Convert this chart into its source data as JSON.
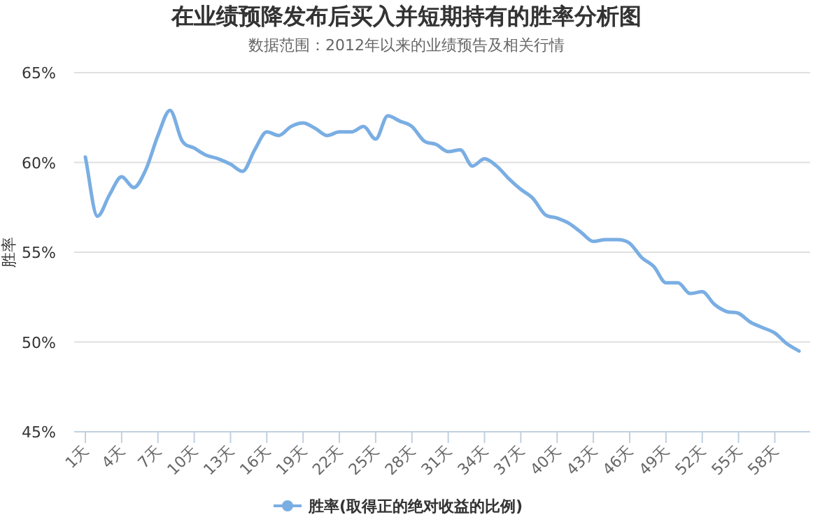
{
  "chart_data": {
    "type": "line",
    "title": "在业绩预降发布后买入并短期持有的胜率分析图",
    "subtitle": "数据范围：2012年以来的业绩预告及相关行情",
    "ylabel": "胜率",
    "categories": [
      "1天",
      null,
      null,
      "4天",
      null,
      null,
      "7天",
      null,
      null,
      "10天",
      null,
      null,
      "13天",
      null,
      null,
      "16天",
      null,
      null,
      "19天",
      null,
      null,
      "22天",
      null,
      null,
      "25天",
      null,
      null,
      "28天",
      null,
      null,
      "31天",
      null,
      null,
      "34天",
      null,
      null,
      "37天",
      null,
      null,
      "40天",
      null,
      null,
      "43天",
      null,
      null,
      "46天",
      null,
      null,
      "49天",
      null,
      null,
      "52天",
      null,
      null,
      "55天",
      null,
      null,
      "58天",
      null,
      null
    ],
    "series": [
      {
        "name": "胜率(取得正的绝对收益的比例)",
        "color": "#7aaee3",
        "values": [
          60.3,
          57.0,
          58.2,
          59.2,
          58.6,
          59.6,
          61.5,
          62.9,
          61.2,
          60.8,
          60.4,
          60.2,
          59.9,
          59.5,
          60.7,
          61.7,
          61.5,
          62.0,
          62.2,
          61.9,
          61.5,
          61.7,
          61.7,
          62.0,
          61.3,
          62.6,
          62.3,
          62.0,
          61.2,
          61.0,
          60.6,
          60.7,
          59.8,
          60.2,
          59.8,
          59.1,
          58.5,
          58.0,
          57.1,
          56.9,
          56.6,
          56.1,
          55.6,
          55.7,
          55.7,
          55.5,
          54.7,
          54.2,
          53.3,
          53.3,
          52.7,
          52.8,
          52.1,
          51.7,
          51.6,
          51.1,
          50.8,
          50.5,
          49.9,
          49.5
        ]
      }
    ],
    "ylim": [
      45,
      65
    ],
    "yticks": [
      {
        "value": 45,
        "label": "45%"
      },
      {
        "value": 50,
        "label": "50%"
      },
      {
        "value": 55,
        "label": "55%"
      },
      {
        "value": 60,
        "label": "60%"
      },
      {
        "value": 65,
        "label": "65%"
      }
    ],
    "grid": "y",
    "legend": "bottom",
    "marker": "none",
    "line_style": "solid"
  }
}
